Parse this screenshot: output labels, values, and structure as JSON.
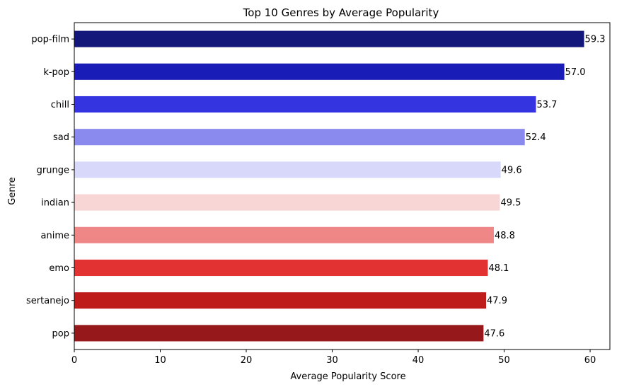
{
  "chart_data": {
    "type": "bar",
    "orientation": "horizontal",
    "title": "Top 10 Genres by Average Popularity",
    "xlabel": "Average Popularity Score",
    "ylabel": "Genre",
    "xlim": [
      0,
      62.3
    ],
    "xticks": [
      0,
      10,
      20,
      30,
      40,
      50,
      60
    ],
    "grid": false,
    "legend": "none",
    "categories": [
      "pop-film",
      "k-pop",
      "chill",
      "sad",
      "grunge",
      "indian",
      "anime",
      "emo",
      "sertanejo",
      "pop"
    ],
    "values": [
      59.3,
      57.0,
      53.7,
      52.4,
      49.6,
      49.5,
      48.8,
      48.1,
      47.9,
      47.6
    ],
    "value_labels": [
      "59.3",
      "57.0",
      "53.7",
      "52.4",
      "49.6",
      "49.5",
      "48.8",
      "48.1",
      "47.9",
      "47.6"
    ],
    "colors": [
      "#14177a",
      "#1a1cb8",
      "#3434e0",
      "#8a8aee",
      "#d8d8fb",
      "#f9d6d6",
      "#ef8787",
      "#e33232",
      "#be1b1b",
      "#96181a"
    ]
  }
}
